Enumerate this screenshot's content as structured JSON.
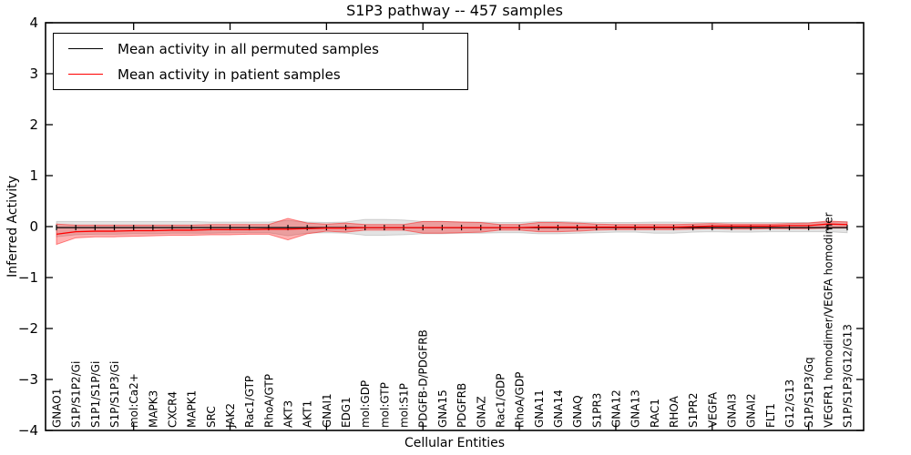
{
  "chart_data": {
    "type": "line",
    "title": "S1P3 pathway -- 457 samples",
    "xlabel": "Cellular Entities",
    "ylabel": "Inferred Activity",
    "ylim": [
      -4,
      4
    ],
    "yticks": [
      -4,
      -3,
      -2,
      -1,
      0,
      1,
      2,
      3,
      4
    ],
    "grid": false,
    "legend_position": "upper left",
    "x_major_tick_indices": [
      4,
      9,
      14,
      19,
      24,
      29,
      34,
      39
    ],
    "categories": [
      "GNAO1",
      "S1P/S1P2/Gi",
      "S1P1/S1P/Gi",
      "S1P/S1P3/Gi",
      "mol:Ca2+",
      "MAPK3",
      "CXCR4",
      "MAPK1",
      "SRC",
      "JAK2",
      "Rac1/GTP",
      "RhoA/GTP",
      "AKT3",
      "AKT1",
      "GNAI1",
      "EDG1",
      "mol:GDP",
      "mol:GTP",
      "mol:S1P",
      "PDGFB-D/PDGFRB",
      "GNA15",
      "PDGFRB",
      "GNAZ",
      "Rac1/GDP",
      "RhoA/GDP",
      "GNA11",
      "GNA14",
      "GNAQ",
      "S1PR3",
      "GNA12",
      "GNA13",
      "RAC1",
      "RHOA",
      "S1PR2",
      "VEGFA",
      "GNAI3",
      "GNAI2",
      "FLT1",
      "G12/G13",
      "S1P/S1P3/Gq",
      "VEGFR1 homodimer/VEGFA homodimer",
      "S1P/S1P3/G12/G13"
    ],
    "series": [
      {
        "id": "permuted-mean",
        "name": "Mean activity in all permuted samples",
        "color": "#000000",
        "marker": "|",
        "values": [
          -0.02,
          -0.02,
          -0.02,
          -0.02,
          -0.02,
          -0.02,
          -0.02,
          -0.02,
          -0.02,
          -0.02,
          -0.02,
          -0.02,
          -0.02,
          -0.02,
          -0.02,
          -0.02,
          -0.02,
          -0.02,
          -0.02,
          -0.02,
          -0.02,
          -0.02,
          -0.02,
          -0.02,
          -0.02,
          -0.02,
          -0.02,
          -0.02,
          -0.02,
          -0.02,
          -0.02,
          -0.02,
          -0.02,
          -0.02,
          -0.02,
          -0.02,
          -0.02,
          -0.02,
          -0.02,
          -0.02,
          -0.02,
          -0.02
        ]
      },
      {
        "id": "patient-mean",
        "name": "Mean activity in patient samples",
        "color": "#ff0000",
        "marker": "",
        "values": [
          -0.15,
          -0.1,
          -0.09,
          -0.09,
          -0.08,
          -0.08,
          -0.07,
          -0.07,
          -0.06,
          -0.06,
          -0.06,
          -0.05,
          -0.05,
          -0.04,
          -0.03,
          -0.03,
          -0.02,
          -0.02,
          -0.02,
          -0.02,
          -0.02,
          -0.02,
          -0.02,
          -0.02,
          -0.02,
          -0.01,
          -0.01,
          -0.01,
          -0.01,
          -0.01,
          -0.01,
          -0.01,
          -0.01,
          0.0,
          0.01,
          0.01,
          0.01,
          0.01,
          0.02,
          0.02,
          0.05,
          0.04
        ]
      }
    ],
    "bands": [
      {
        "id": "permuted-range",
        "color": "#000000",
        "fill_opacity": 0.11,
        "edge_opacity": 0.14,
        "low": [
          -0.2,
          -0.16,
          -0.15,
          -0.15,
          -0.14,
          -0.14,
          -0.13,
          -0.13,
          -0.13,
          -0.12,
          -0.12,
          -0.12,
          -0.18,
          -0.13,
          -0.12,
          -0.13,
          -0.17,
          -0.17,
          -0.16,
          -0.14,
          -0.14,
          -0.13,
          -0.13,
          -0.12,
          -0.12,
          -0.14,
          -0.14,
          -0.13,
          -0.12,
          -0.11,
          -0.11,
          -0.13,
          -0.13,
          -0.11,
          -0.1,
          -0.11,
          -0.11,
          -0.1,
          -0.1,
          -0.1,
          -0.1,
          -0.12
        ],
        "high": [
          0.1,
          0.1,
          0.1,
          0.1,
          0.1,
          0.1,
          0.1,
          0.1,
          0.09,
          0.09,
          0.09,
          0.09,
          0.12,
          0.09,
          0.08,
          0.09,
          0.14,
          0.14,
          0.13,
          0.1,
          0.1,
          0.09,
          0.09,
          0.08,
          0.08,
          0.1,
          0.1,
          0.09,
          0.08,
          0.08,
          0.08,
          0.09,
          0.09,
          0.08,
          0.08,
          0.08,
          0.08,
          0.08,
          0.08,
          0.08,
          0.09,
          0.1
        ]
      },
      {
        "id": "patient-range",
        "color": "#ff0000",
        "fill_opacity": 0.3,
        "edge_opacity": 0.45,
        "low": [
          -0.35,
          -0.22,
          -0.2,
          -0.2,
          -0.19,
          -0.18,
          -0.17,
          -0.17,
          -0.16,
          -0.16,
          -0.15,
          -0.15,
          -0.26,
          -0.14,
          -0.09,
          -0.11,
          -0.07,
          -0.07,
          -0.07,
          -0.13,
          -0.13,
          -0.12,
          -0.11,
          -0.07,
          -0.07,
          -0.1,
          -0.1,
          -0.09,
          -0.07,
          -0.06,
          -0.06,
          -0.06,
          -0.06,
          -0.05,
          -0.04,
          -0.05,
          -0.05,
          -0.04,
          -0.04,
          -0.04,
          -0.03,
          -0.03
        ],
        "high": [
          0.05,
          0.03,
          0.03,
          0.03,
          0.03,
          0.03,
          0.03,
          0.03,
          0.04,
          0.04,
          0.04,
          0.04,
          0.16,
          0.07,
          0.05,
          0.07,
          0.04,
          0.04,
          0.04,
          0.1,
          0.1,
          0.09,
          0.08,
          0.04,
          0.04,
          0.08,
          0.08,
          0.07,
          0.05,
          0.04,
          0.04,
          0.04,
          0.04,
          0.05,
          0.06,
          0.05,
          0.05,
          0.05,
          0.06,
          0.07,
          0.11,
          0.09
        ]
      }
    ]
  }
}
